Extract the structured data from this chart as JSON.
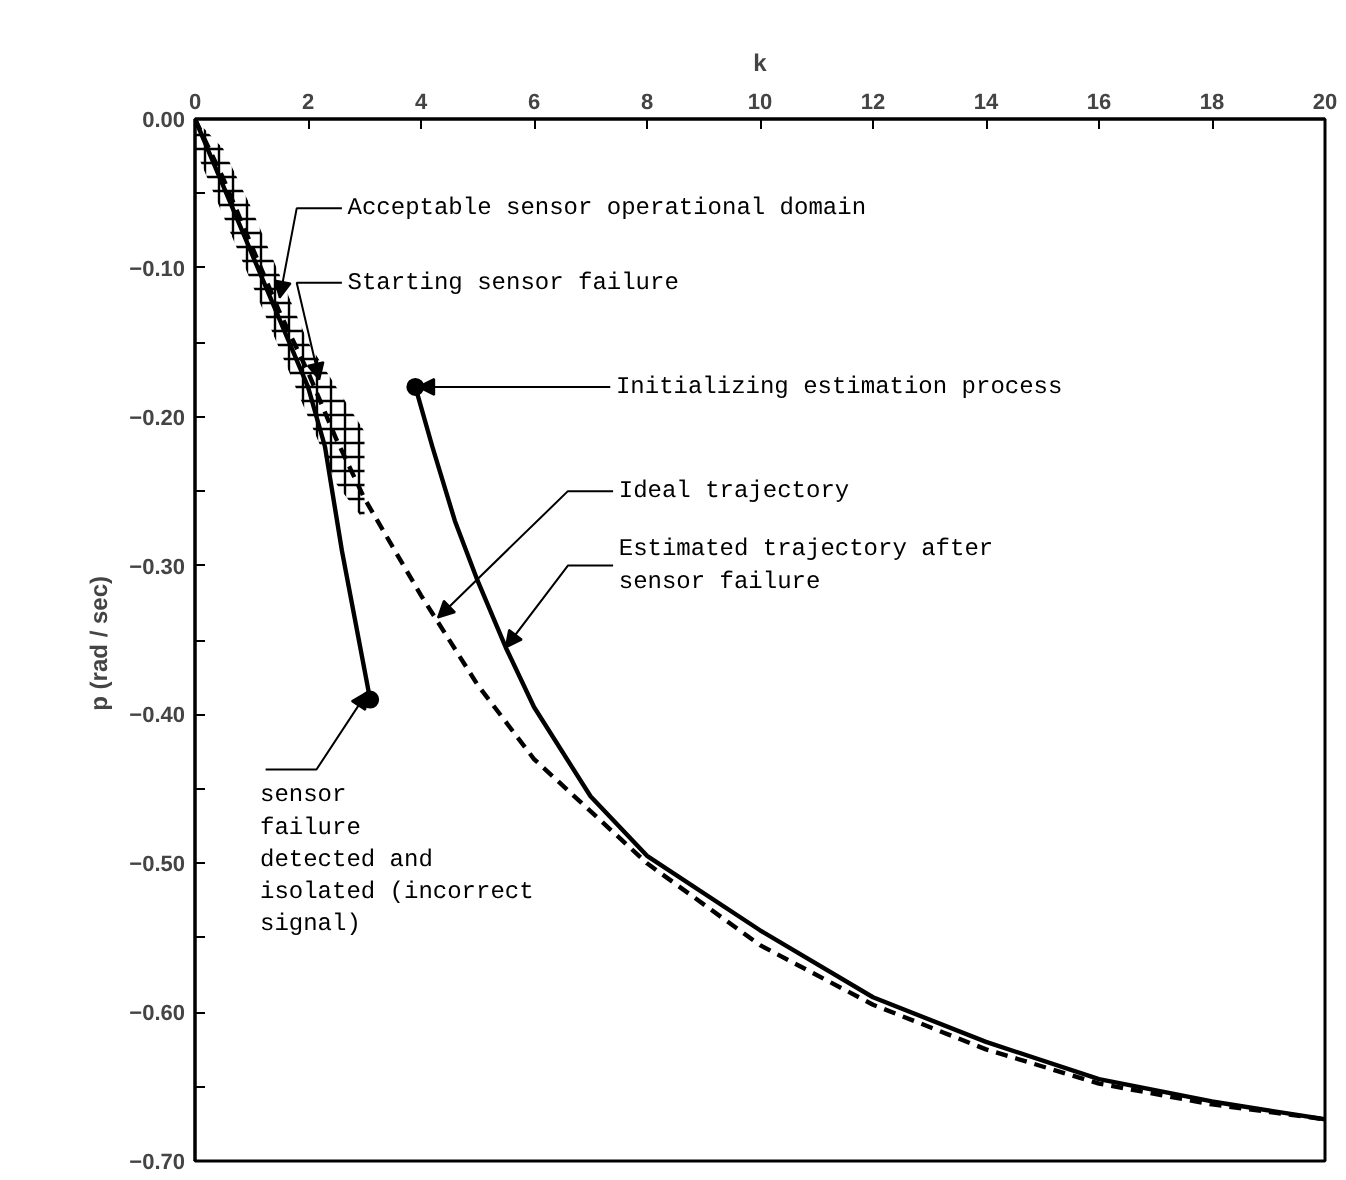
{
  "chart_data": {
    "type": "line",
    "xlabel": "k",
    "ylabel": "p  (rad / sec)",
    "xlim": [
      0,
      20
    ],
    "xticks": [
      0,
      2,
      4,
      6,
      8,
      10,
      12,
      14,
      16,
      18,
      20
    ],
    "ylim": [
      -0.7,
      0
    ],
    "yticks": [
      {
        "value": 0,
        "label": "0.00"
      },
      {
        "value": -0.05,
        "label": null
      },
      {
        "value": -0.1,
        "label": "−0.10"
      },
      {
        "value": -0.15,
        "label": null
      },
      {
        "value": -0.2,
        "label": "−0.20"
      },
      {
        "value": -0.25,
        "label": null
      },
      {
        "value": -0.3,
        "label": "−0.30"
      },
      {
        "value": -0.35,
        "label": null
      },
      {
        "value": -0.4,
        "label": "−0.40"
      },
      {
        "value": -0.45,
        "label": null
      },
      {
        "value": -0.5,
        "label": "−0.50"
      },
      {
        "value": -0.55,
        "label": null
      },
      {
        "value": -0.6,
        "label": "−0.60"
      },
      {
        "value": -0.65,
        "label": null
      },
      {
        "value": -0.7,
        "label": "−0.70"
      }
    ],
    "grid": false,
    "series": [
      {
        "color": "#000000",
        "line_style": "dashed",
        "x": [
          0,
          0.5,
          1,
          1.5,
          2,
          2.5,
          3,
          4,
          5,
          6,
          8,
          10,
          12,
          14,
          16,
          18,
          20
        ],
        "values": [
          0,
          -0.04,
          -0.085,
          -0.13,
          -0.17,
          -0.215,
          -0.255,
          -0.32,
          -0.38,
          -0.43,
          -0.5,
          -0.555,
          -0.595,
          -0.625,
          -0.648,
          -0.662,
          -0.672
        ],
        "lower": [
          -0.02,
          -0.065,
          -0.11,
          -0.155,
          -0.2,
          -0.245,
          -0.27,
          null,
          null,
          null,
          null,
          null,
          null,
          null,
          null,
          null,
          null
        ],
        "upper": [
          0,
          -0.02,
          -0.06,
          -0.105,
          -0.15,
          -0.18,
          -0.21,
          null,
          null,
          null,
          null,
          null,
          null,
          null,
          null,
          null,
          null
        ]
      },
      {
        "color": "#000000",
        "line_style": "solid",
        "x": [
          3.9,
          4.2,
          4.6,
          5.0,
          5.5,
          6,
          7,
          8,
          10,
          12,
          14,
          16,
          18,
          20
        ],
        "values": [
          -0.18,
          -0.22,
          -0.27,
          -0.31,
          -0.355,
          -0.395,
          -0.455,
          -0.495,
          -0.545,
          -0.59,
          -0.62,
          -0.645,
          -0.66,
          -0.672
        ]
      },
      {
        "color": "#000000",
        "line_style": "solid",
        "x": [
          0,
          1,
          2,
          2.3,
          2.6,
          3.1
        ],
        "values": [
          0,
          -0.09,
          -0.18,
          -0.22,
          -0.29,
          -0.39
        ]
      },
      {
        "type": "scatter",
        "marker": "circle",
        "color": "#000000",
        "x": [
          3.9,
          3.1
        ],
        "values": [
          -0.18,
          -0.39
        ]
      }
    ],
    "annotations": [
      {
        "text": "Acceptable sensor operational domain",
        "x": 1.5,
        "y": -0.12
      },
      {
        "text": "Starting sensor failure",
        "x": 2.2,
        "y": -0.175
      },
      {
        "text": "Initializing estimation process",
        "x": 3.95,
        "y": -0.18
      },
      {
        "text": "Ideal trajectory",
        "x": 4.3,
        "y": -0.335
      },
      {
        "text": "Estimated trajectory after\nsensor failure",
        "x": 5.5,
        "y": -0.355
      },
      {
        "text": "sensor\nfailure\ndetected and\nisolated (incorrect\nsignal)",
        "x": 3.05,
        "y": -0.385
      }
    ]
  }
}
